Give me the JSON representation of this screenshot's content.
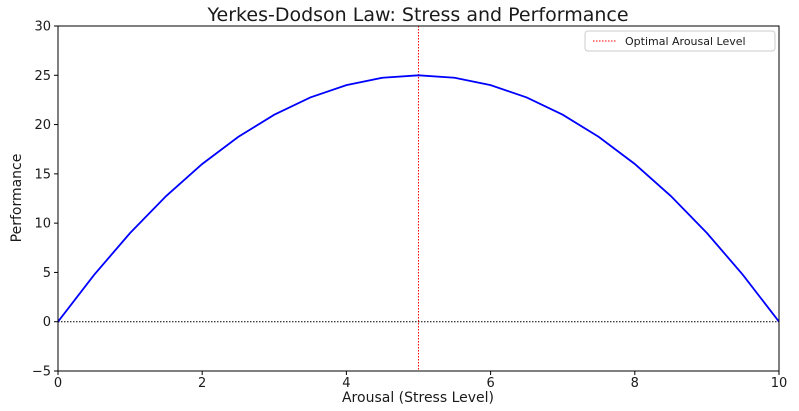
{
  "chart_data": {
    "type": "line",
    "title": "Yerkes-Dodson Law: Stress and Performance",
    "xlabel": "Arousal (Stress Level)",
    "ylabel": "Performance",
    "xlim": [
      0,
      10
    ],
    "ylim": [
      -5,
      30
    ],
    "x_ticks": [
      0,
      2,
      4,
      6,
      8,
      10
    ],
    "y_ticks": [
      -5,
      0,
      5,
      10,
      15,
      20,
      25,
      30
    ],
    "grid": false,
    "legend_position": "top-right",
    "series": [
      {
        "color": "#0000ff",
        "x": [
          0,
          0.5,
          1,
          1.5,
          2,
          2.5,
          3,
          3.5,
          4,
          4.5,
          5,
          5.5,
          6,
          6.5,
          7,
          7.5,
          8,
          8.5,
          9,
          9.5,
          10
        ],
        "y": [
          0,
          4.75,
          9,
          12.75,
          16,
          18.75,
          21,
          22.75,
          24,
          24.75,
          25,
          24.75,
          24,
          22.75,
          21,
          18.75,
          16,
          12.75,
          9,
          4.75,
          0
        ]
      }
    ],
    "reference_lines": [
      {
        "orientation": "vertical",
        "x": 5,
        "label": "Optimal Arousal Level",
        "color": "#ff0000",
        "style": "dotted"
      },
      {
        "orientation": "horizontal",
        "y": 0,
        "color": "#000000",
        "style": "dotted"
      }
    ]
  }
}
